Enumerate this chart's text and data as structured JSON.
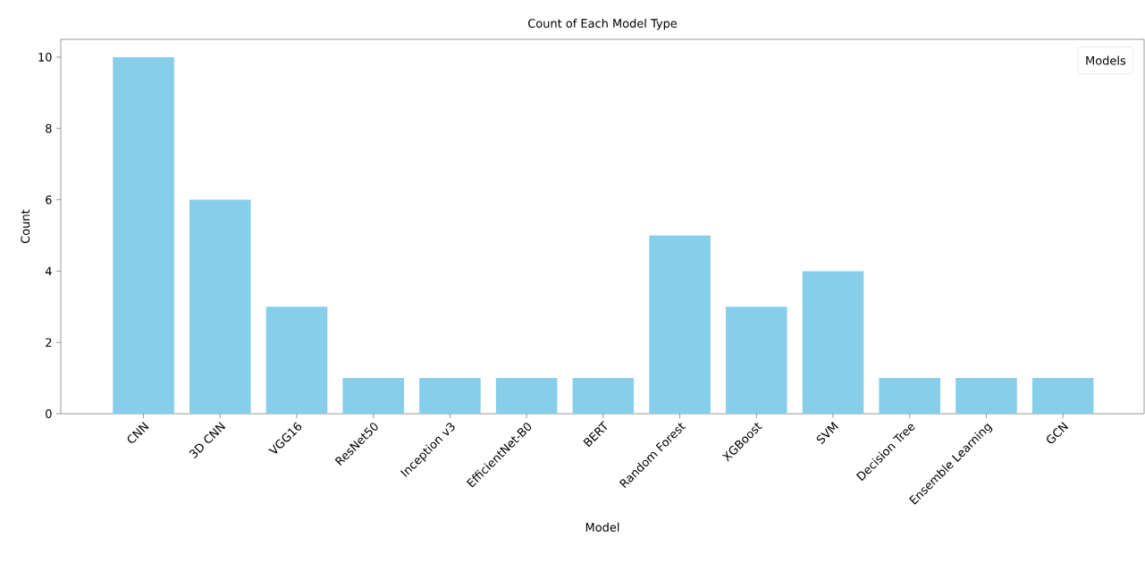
{
  "chart_data": {
    "type": "bar",
    "title": "Count of Each Model Type",
    "xlabel": "Model",
    "ylabel": "Count",
    "legend_title": "Models",
    "categories": [
      "CNN",
      "3D CNN",
      "VGG16",
      "ResNet50",
      "Inception v3",
      "EfficientNet-B0",
      "BERT",
      "Random Forest",
      "XGBoost",
      "SVM",
      "Decision Tree",
      "Ensemble Learning",
      "GCN"
    ],
    "values": [
      10,
      6,
      3,
      1,
      1,
      1,
      1,
      5,
      3,
      4,
      1,
      1,
      1
    ],
    "color": "#87ceeb",
    "ylim": [
      0,
      10.5
    ],
    "yticks": [
      0,
      2,
      4,
      6,
      8,
      10
    ]
  }
}
